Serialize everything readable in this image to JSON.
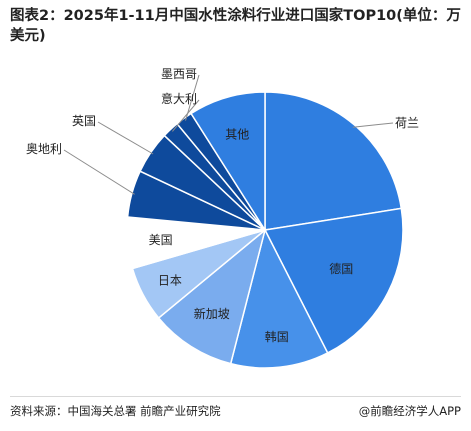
{
  "title": "图表2：2025年1-11月中国水性涂料行业进口国家TOP10(单位：万美元)",
  "source": "资料来源：中国海关总署 前瞻产业研究院",
  "brand": "@前瞻经济学人APP",
  "chart_data": {
    "type": "pie",
    "title": "图表2：2025年1-11月中国水性涂料行业进口国家TOP10(单位：万美元)",
    "unit": "万美元",
    "categories": [
      "荷兰",
      "德国",
      "韩国",
      "新加坡",
      "日本",
      "美国",
      "奥地利",
      "英国",
      "意大利",
      "墨西哥",
      "其他"
    ],
    "values": [
      22.5,
      20.0,
      11.5,
      10.0,
      6.5,
      6.0,
      5.5,
      5.0,
      2.0,
      2.0,
      9.0
    ],
    "colors": [
      "#2f7ee0",
      "#2f7ee0",
      "#4791ea",
      "#7aacee",
      "#a3c7f5",
      "#ffffff",
      "#0e4a9c",
      "#0e4a9c",
      "#0e4a9c",
      "#0e4a9c",
      "#2f7ee0"
    ],
    "legend": "none"
  }
}
